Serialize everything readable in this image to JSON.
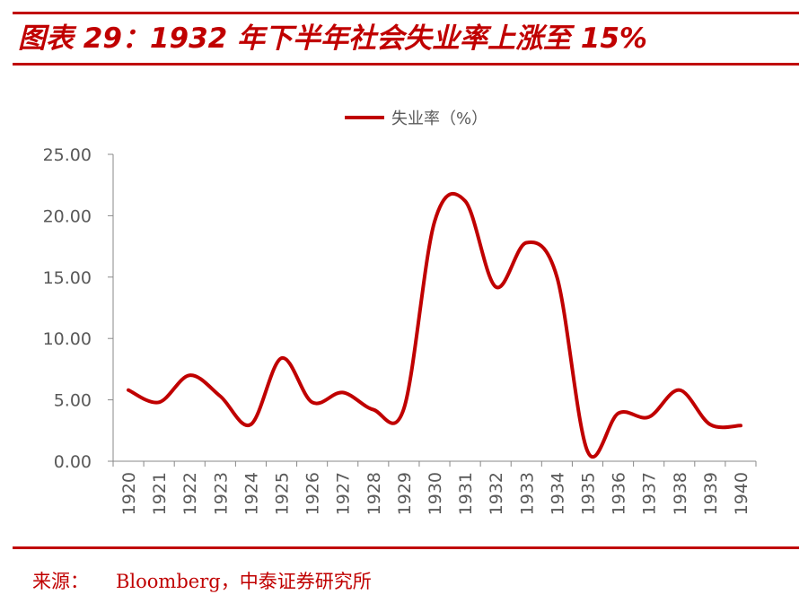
{
  "header": {
    "title": "图表 29：1932 年下半年社会失业率上涨至 15%"
  },
  "footer": {
    "source_label": "来源：",
    "source_text": "Bloomberg，中泰证券研究所"
  },
  "colors": {
    "accent": "#c00000",
    "series": "#c00000",
    "axis": "#888888",
    "text": "#595959"
  },
  "chart_data": {
    "type": "line",
    "title": "",
    "xlabel": "",
    "ylabel": "",
    "ylim": [
      0,
      25
    ],
    "yticks": [
      "0.00",
      "5.00",
      "10.00",
      "15.00",
      "20.00",
      "25.00"
    ],
    "grid": false,
    "legend_position": "top-center",
    "smooth": true,
    "categories": [
      "1920",
      "1921",
      "1922",
      "1923",
      "1924",
      "1925",
      "1926",
      "1927",
      "1928",
      "1929",
      "1930",
      "1931",
      "1932",
      "1933",
      "1934",
      "1935",
      "1936",
      "1937",
      "1938",
      "1939",
      "1940"
    ],
    "series": [
      {
        "name": "失业率（%）",
        "values": [
          5.8,
          4.8,
          7.0,
          5.3,
          3.0,
          8.4,
          4.8,
          5.6,
          4.2,
          4.3,
          19.5,
          21.2,
          14.2,
          17.8,
          15.0,
          0.8,
          3.9,
          3.6,
          5.8,
          3.0,
          2.9
        ]
      }
    ]
  }
}
